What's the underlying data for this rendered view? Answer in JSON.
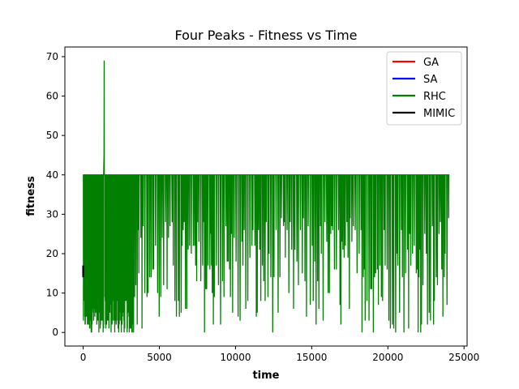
{
  "chart_data": {
    "type": "line",
    "title": "Four Peaks - Fitness vs Time",
    "xlabel": "time",
    "ylabel": "fitness",
    "xlim": [
      -1200,
      25200
    ],
    "ylim": [
      -3.45,
      72.45
    ],
    "xticks": [
      0,
      5000,
      10000,
      15000,
      20000,
      25000
    ],
    "xtick_labels": [
      "0",
      "5000",
      "10000",
      "15000",
      "20000",
      "25000"
    ],
    "yticks": [
      0,
      10,
      20,
      30,
      40,
      50,
      60,
      70
    ],
    "ytick_labels": [
      "0",
      "10",
      "20",
      "30",
      "40",
      "50",
      "60",
      "70"
    ],
    "grid": false,
    "legend_position": "top-right",
    "series": [
      {
        "name": "GA",
        "color": "#ff0000",
        "x": [],
        "y": []
      },
      {
        "name": "SA",
        "color": "#0000ff",
        "x": [],
        "y": []
      },
      {
        "name": "RHC",
        "color": "#007f00",
        "note_pattern": "oscillates rapidly between ~0 and 40 across the full time range, with a single spike to 69 near t=1380",
        "x": [
          0,
          1300,
          1360,
          1380,
          1400,
          1440,
          24000
        ],
        "y": [
          40,
          40,
          45,
          69,
          40,
          40,
          40
        ],
        "oscillation": {
          "x_start": 0,
          "x_end": 24000,
          "low": 0,
          "high": 40
        }
      },
      {
        "name": "MIMIC",
        "color": "#000000",
        "x": [
          0,
          0,
          0,
          0
        ],
        "y": [
          14,
          17,
          15,
          16
        ]
      }
    ]
  }
}
